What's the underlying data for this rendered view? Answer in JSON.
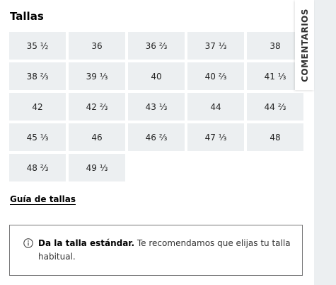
{
  "sizes": {
    "title": "Tallas",
    "options": [
      "35 ½",
      "36",
      "36 ⅔",
      "37 ⅓",
      "38",
      "38 ⅔",
      "39 ⅓",
      "40",
      "40 ⅔",
      "41 ⅓",
      "42",
      "42 ⅔",
      "43 ⅓",
      "44",
      "44 ⅔",
      "45 ⅓",
      "46",
      "46 ⅔",
      "47 ⅓",
      "48",
      "48 ⅔",
      "49 ⅓"
    ],
    "guide_link": "Guía de tallas"
  },
  "notice": {
    "icon": "info-icon",
    "bold": "Da la talla estándar.",
    "text": " Te recomendamos que elijas tu talla habitual."
  },
  "feedback": {
    "label": "COMENTARIOS"
  }
}
